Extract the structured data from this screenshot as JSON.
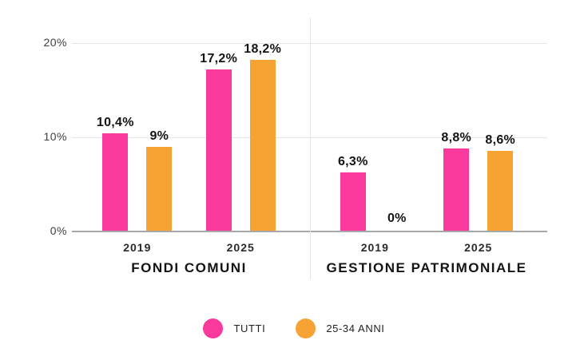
{
  "chart_data": {
    "type": "bar",
    "title": "",
    "xlabel": "",
    "ylabel": "",
    "unit": "%",
    "ylim": [
      0,
      20
    ],
    "grid": true,
    "yticks": [
      {
        "value": 20,
        "label": "20%"
      },
      {
        "value": 10,
        "label": "10%"
      },
      {
        "value": 0,
        "label": "0%"
      }
    ],
    "series": [
      {
        "name": "TUTTI",
        "color": "#F9399B"
      },
      {
        "name": "25-34 ANNI",
        "color": "#F6A334"
      }
    ],
    "groups": [
      {
        "label": "FONDI COMUNI",
        "clusters": [
          {
            "x": "2019",
            "values": [
              10.4,
              9.0
            ],
            "labels": [
              "10,4%",
              "9%"
            ]
          },
          {
            "x": "2025",
            "values": [
              17.2,
              18.2
            ],
            "labels": [
              "17,2%",
              "18,2%"
            ]
          }
        ]
      },
      {
        "label": "GESTIONE PATRIMONIALE",
        "clusters": [
          {
            "x": "2019",
            "values": [
              6.3,
              0
            ],
            "labels": [
              "6,3%",
              "0%"
            ]
          },
          {
            "x": "2025",
            "values": [
              8.8,
              8.6
            ],
            "labels": [
              "8,8%",
              "8,6%"
            ]
          }
        ]
      }
    ],
    "legend_position": "bottom",
    "colors": {
      "grid": "#e4e4e4",
      "axis": "#a8a8a8",
      "tick_text": "#3f3f3f",
      "label_text": "#141414"
    }
  }
}
